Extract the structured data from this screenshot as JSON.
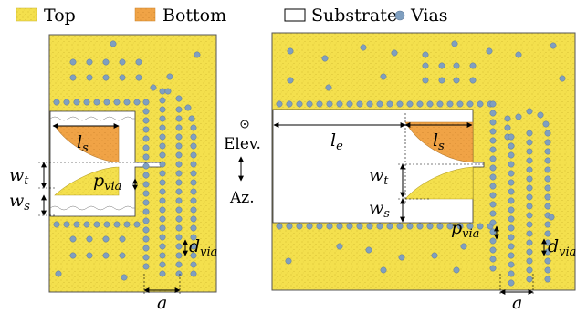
{
  "legend": [
    {
      "key": "top",
      "label": "Top",
      "color": "#f4e04d"
    },
    {
      "key": "bottom",
      "label": "Bottom",
      "color": "#f0a346"
    },
    {
      "key": "substrate",
      "label": "Substrate",
      "color": "#ffffff"
    },
    {
      "key": "vias",
      "label": "Vias",
      "color": "#7f9fc0"
    }
  ],
  "labels": {
    "ls_left": "l",
    "ls_left_sub": "s",
    "wt_left": "w",
    "wt_left_sub": "t",
    "ws_left": "w",
    "ws_left_sub": "s",
    "pvia_left": "p",
    "pvia_left_sub": "via",
    "dvia_left": "d",
    "dvia_left_sub": "via",
    "a_left": "a",
    "le_right": "l",
    "le_right_sub": "e",
    "ls_right": "l",
    "ls_right_sub": "s",
    "wt_right": "w",
    "wt_right_sub": "t",
    "ws_right": "w",
    "ws_right_sub": "s",
    "pvia_right": "p",
    "pvia_right_sub": "via",
    "dvia_right": "d",
    "dvia_right_sub": "via",
    "a_right": "a",
    "elev": "Elev.",
    "az": "Az."
  },
  "colors": {
    "top": "#f4e04d",
    "bottom": "#f0a346",
    "via": "#7f9fc0",
    "via_stroke": "#5a7596"
  }
}
